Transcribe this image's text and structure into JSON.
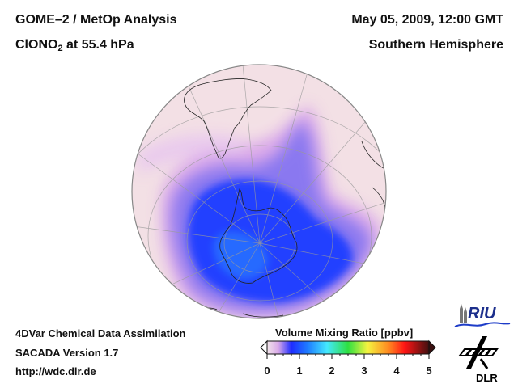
{
  "header": {
    "title_line1": "GOME–2 / MetOp Analysis",
    "species_main": "ClONO",
    "species_sub": "2",
    "species_rest": " at 55.4 hPa",
    "date": "May 05, 2009, 12:00 GMT",
    "hemisphere": "Southern Hemisphere"
  },
  "footer": {
    "line1": "4DVar Chemical Data Assimilation",
    "line2": "SACADA Version 1.7",
    "line3": "http://wdc.dlr.de"
  },
  "colorbar": {
    "label": "Volume Mixing Ratio [ppbv]",
    "ticks": [
      "0",
      "1",
      "2",
      "3",
      "4",
      "5"
    ],
    "range": [
      0,
      5
    ],
    "colors": [
      "#f2e4ea",
      "#d8a8e8",
      "#1e2cff",
      "#1e7cff",
      "#44e8ff",
      "#2ee040",
      "#f4f440",
      "#ff8a20",
      "#ff1414",
      "#401010"
    ]
  },
  "logos": {
    "riu": "RIU",
    "dlr": "DLR"
  },
  "map": {
    "projection": "orthographic",
    "center": "South Pole",
    "field_colors": {
      "background": "#f3dfe4",
      "low": "#1e40ff",
      "mid": "#7a6cf0",
      "light": "#d4a4ec"
    }
  }
}
